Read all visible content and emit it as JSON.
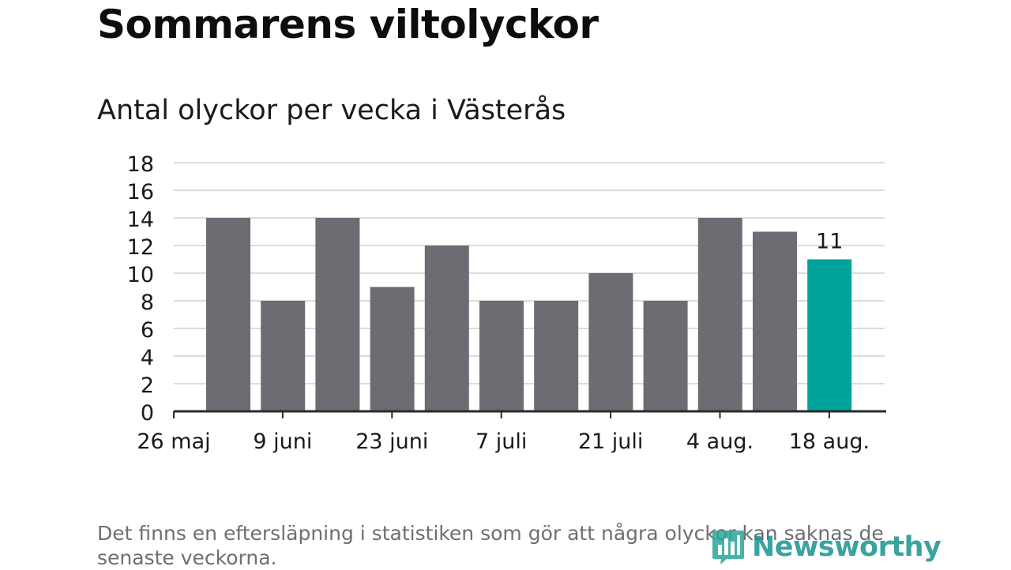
{
  "header": {
    "title": "Sommarens viltolyckor",
    "subtitle": "Antal olyckor per vecka i Västerås"
  },
  "footnote": "Det finns en eftersläpning i statistiken som gör att några olyckor kan saknas de senaste veckorna.",
  "brand": {
    "name": "Newsworthy"
  },
  "colors": {
    "bar": "#6d6c72",
    "highlight": "#00a49a",
    "grid": "#dcdcdc",
    "axis": "#2b2b2b"
  },
  "chart_data": {
    "type": "bar",
    "title": "Antal olyckor per vecka i Västerås",
    "xlabel": "",
    "ylabel": "",
    "ylim": [
      0,
      18
    ],
    "yticks": [
      0,
      2,
      4,
      6,
      8,
      10,
      12,
      14,
      16,
      18
    ],
    "xtick_labels": [
      "26 maj",
      "9 juni",
      "23 juni",
      "7 juli",
      "21 juli",
      "4 aug.",
      "18 aug."
    ],
    "values": [
      14,
      8,
      14,
      9,
      12,
      8,
      8,
      10,
      8,
      14,
      13,
      11
    ],
    "highlight_index": 11,
    "highlight_label": "11",
    "grid": true,
    "legend": "none"
  }
}
